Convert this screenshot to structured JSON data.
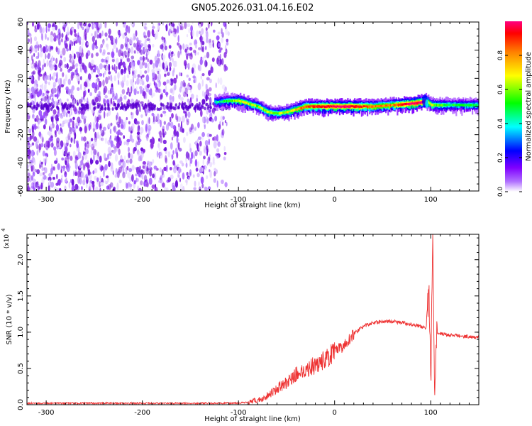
{
  "title": "GN05.2026.031.04.16.E02",
  "chart_data": [
    {
      "type": "heatmap",
      "xlabel": "Height of straight line (km)",
      "ylabel": "Frequency (Hz)",
      "xlim": [
        -320,
        150
      ],
      "ylim": [
        -60,
        60
      ],
      "xticks": [
        -300,
        -200,
        -100,
        0,
        100
      ],
      "yticks": [
        -60,
        -40,
        -20,
        0,
        20,
        40,
        60
      ],
      "colorbar": {
        "label": "Normalized spectral amplitude",
        "range": [
          0,
          1
        ],
        "ticks": [
          "0.0",
          "0.2",
          "0.4",
          "0.6",
          "0.8"
        ],
        "colormap": [
          "#ffffff",
          "#8000ff",
          "#0000ff",
          "#00ffff",
          "#00ff00",
          "#ffff00",
          "#ff8000",
          "#ff0000",
          "#ff0080"
        ]
      },
      "noise_region_x": [
        -320,
        -110
      ],
      "ridge": {
        "x": [
          -125,
          -110,
          -100,
          -90,
          -80,
          -70,
          -60,
          -50,
          -40,
          -30,
          -20,
          -10,
          0,
          10,
          20,
          40,
          60,
          80,
          90,
          95,
          100,
          110,
          130,
          150
        ],
        "freq": [
          3,
          4,
          4,
          2,
          0,
          -4,
          -5,
          -4,
          -2,
          0,
          0,
          0,
          0,
          0,
          0,
          0,
          1,
          2,
          3,
          4,
          1,
          1,
          1,
          1
        ],
        "amplitude": [
          0.4,
          0.5,
          0.6,
          0.6,
          0.55,
          0.6,
          0.55,
          0.6,
          0.7,
          0.8,
          0.85,
          0.9,
          0.95,
          0.95,
          0.9,
          0.75,
          0.75,
          1.0,
          0.95,
          0.7,
          0.6,
          0.5,
          0.45,
          0.45
        ]
      }
    },
    {
      "type": "line",
      "xlabel": "Height of straight line (km)",
      "ylabel": "SNR (10 * v/v)",
      "yscale_label": "(x10",
      "yscale_exp": "4",
      "xlim": [
        -320,
        150
      ],
      "ylim": [
        0,
        2.35
      ],
      "xticks": [
        -300,
        -200,
        -100,
        0,
        100
      ],
      "yticks": [
        "0.0",
        "0.5",
        "1.0",
        "1.5",
        "2.0"
      ],
      "color": "#ee3333",
      "series": [
        {
          "x": [
            -320,
            -110,
            -90,
            -75,
            -60,
            -50,
            -40,
            -30,
            -20,
            -10,
            0,
            10,
            20,
            30,
            40,
            50,
            60,
            70,
            80,
            90,
            96,
            98,
            100,
            102,
            104,
            106,
            110,
            120,
            130,
            140,
            150
          ],
          "y": [
            0.02,
            0.02,
            0.03,
            0.08,
            0.22,
            0.3,
            0.42,
            0.48,
            0.55,
            0.62,
            0.72,
            0.82,
            0.98,
            1.08,
            1.13,
            1.15,
            1.15,
            1.13,
            1.11,
            1.08,
            1.05,
            1.7,
            0.2,
            2.3,
            0.3,
            1.0,
            0.98,
            0.96,
            0.95,
            0.94,
            0.93
          ]
        }
      ]
    }
  ]
}
